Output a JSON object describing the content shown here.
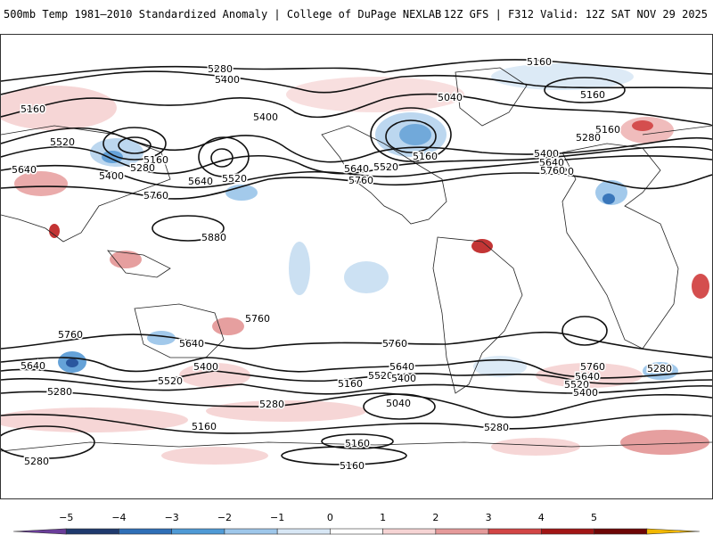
{
  "header": {
    "left_title": "500mb Temp 1981–2010 Standardized Anomaly | College of DuPage NEXLAB",
    "right_title": "12Z GFS | F312 Valid: 12Z SAT NOV 29 2025"
  },
  "map": {
    "contour_labels": {
      "h5280_a": "5280",
      "h5400_a": "5400",
      "h5160_a": "5160",
      "h5400_b": "5400",
      "h5520_a": "5520",
      "h5640_a": "5640",
      "h5160_b": "5160",
      "h5280_b": "5280",
      "h5400_c": "5400",
      "h5520_b": "5520",
      "h5640_b": "5640",
      "h5760_a": "5760",
      "h5880": "5880",
      "h5160_c": "5160",
      "h5040_a": "5040",
      "h5160_d": "5160",
      "h5160_e": "5160",
      "h5640_c": "5640",
      "h5520_c": "5520",
      "h5760_b": "5760",
      "h5160_f": "5160",
      "h5280_c": "5280",
      "h5400_d": "5400",
      "h5640_d": "5640",
      "h5520_d": "5520",
      "h5760_c": "5760",
      "s5760_a": "5760",
      "s5640_a": "5640",
      "s5400_a": "5400",
      "s5520_a": "5520",
      "s5280_a": "5280",
      "s5160_a": "5160",
      "s5760_b": "5760",
      "s5760_c": "5760",
      "s5640_b": "5640",
      "s5520_b": "5520",
      "s5400_b": "5400",
      "s5160_b": "5160",
      "s5280_b": "5280",
      "s5040_b": "5040",
      "s5160_c": "5160",
      "s5280_c": "5280",
      "s5760_d": "5760",
      "s5640_c": "5640",
      "s5520_c": "5520",
      "s5400_c": "5400",
      "s5280_d": "5280",
      "s5160_d": "5160",
      "s5160_e": "5160",
      "s5280_e": "5280",
      "s5640_e": "5640"
    }
  },
  "legend": {
    "ticks": [
      "−5",
      "−4",
      "−3",
      "−2",
      "−1",
      "0",
      "1",
      "2",
      "3",
      "4",
      "5"
    ],
    "colors": [
      "#6a3d9a",
      "#1f3a6e",
      "#2f6fb7",
      "#4f9ad6",
      "#9ec7ea",
      "#d8e7f5",
      "#ffffff",
      "#f6d4d4",
      "#e59a9a",
      "#d24545",
      "#a11515",
      "#6e0606",
      "#f2b800"
    ]
  }
}
